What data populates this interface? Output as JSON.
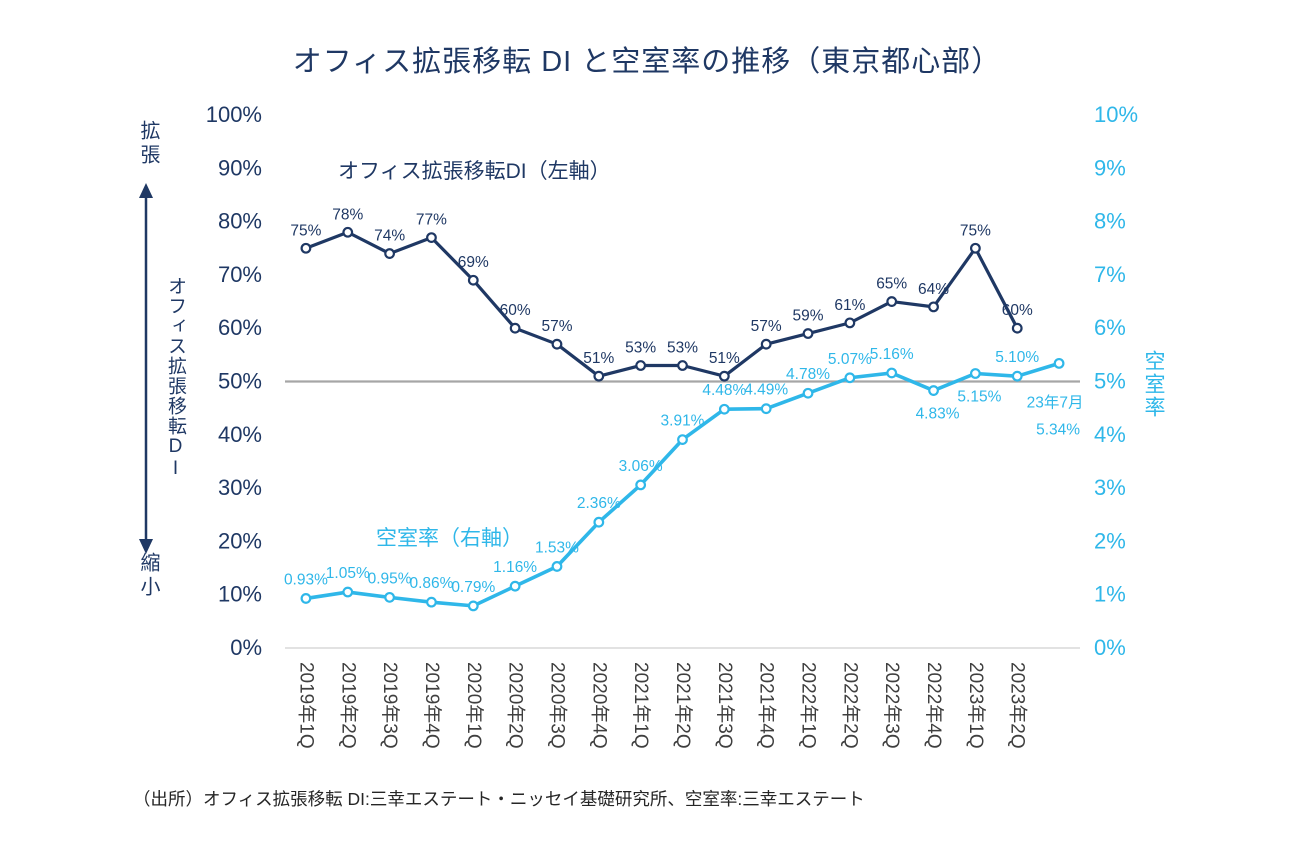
{
  "title": "オフィス拡張移転 DI と空室率の推移（東京都心部）",
  "source_note": "（出所）オフィス拡張移転 DI:三幸エステート・ニッセイ基礎研究所、空室率:三幸エステート",
  "colors": {
    "di_navy": "#1F3864",
    "vacancy_blue": "#2FB7E9",
    "baseline_gray": "#A6A6A6",
    "axis_gray": "#D9D9D9",
    "x_label_gray": "#3F3F3F"
  },
  "left_axis": {
    "vertical_label": "オフィス拡張移転DI",
    "arrow_top_label": "拡張",
    "arrow_bottom_label": "縮小",
    "ticks": [
      "100%",
      "90%",
      "80%",
      "70%",
      "60%",
      "50%",
      "40%",
      "30%",
      "20%",
      "10%",
      "0%"
    ]
  },
  "right_axis": {
    "vertical_label": "空室率",
    "ticks": [
      "10%",
      "9%",
      "8%",
      "7%",
      "6%",
      "5%",
      "4%",
      "3%",
      "2%",
      "1%",
      "0%"
    ]
  },
  "annotations": {
    "di_series_label": "オフィス拡張移転DI（左軸）",
    "vacancy_series_label": "空室率（右軸）"
  },
  "chart_data": {
    "type": "line",
    "categories": [
      "2019年1Q",
      "2019年2Q",
      "2019年3Q",
      "2019年4Q",
      "2020年1Q",
      "2020年2Q",
      "2020年3Q",
      "2020年4Q",
      "2021年1Q",
      "2021年2Q",
      "2021年3Q",
      "2021年4Q",
      "2022年1Q",
      "2022年2Q",
      "2022年3Q",
      "2022年4Q",
      "2023年1Q",
      "2023年2Q",
      "23年7月"
    ],
    "x_tick_count": 18,
    "left_ylim": [
      0,
      100
    ],
    "right_ylim": [
      0,
      10
    ],
    "baseline_left_value": 50,
    "series": [
      {
        "name": "オフィス拡張移転DI（左軸）",
        "axis": "left",
        "values": [
          75,
          78,
          74,
          77,
          69,
          60,
          57,
          51,
          53,
          53,
          51,
          57,
          59,
          61,
          65,
          64,
          75,
          60
        ],
        "labels": [
          "75%",
          "78%",
          "74%",
          "77%",
          "69%",
          "60%",
          "57%",
          "51%",
          "53%",
          "53%",
          "51%",
          "57%",
          "59%",
          "61%",
          "65%",
          "64%",
          "75%",
          "60%"
        ]
      },
      {
        "name": "空室率（右軸）",
        "axis": "right",
        "values": [
          0.93,
          1.05,
          0.95,
          0.86,
          0.79,
          1.16,
          1.53,
          2.36,
          3.06,
          3.91,
          4.48,
          4.49,
          4.78,
          5.07,
          5.16,
          4.83,
          5.15,
          5.1,
          5.34
        ],
        "labels": [
          "0.93%",
          "1.05%",
          "0.95%",
          "0.86%",
          "0.79%",
          "1.16%",
          "1.53%",
          "2.36%",
          "3.06%",
          "3.91%",
          "4.48%",
          "4.49%",
          "4.78%",
          "5.07%",
          "5.16%",
          "4.83%",
          "5.15%",
          "5.10%",
          "5.34%"
        ],
        "last_point_annotation": "23年7月"
      }
    ]
  }
}
